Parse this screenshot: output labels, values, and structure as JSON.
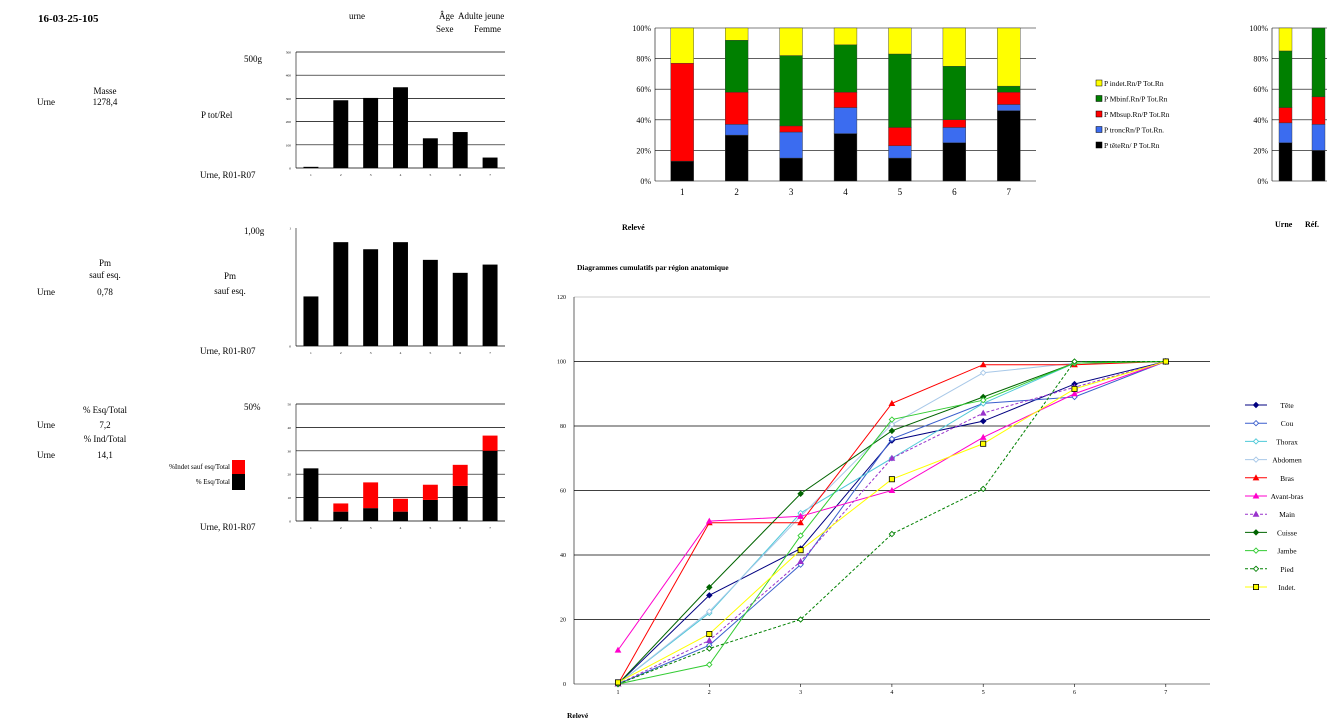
{
  "header": {
    "id": "16-03-25-105",
    "urne": "urne",
    "age_label": "Âge",
    "age_value": "Adulte jeune",
    "sexe_label": "Sexe",
    "sexe_value": "Femme"
  },
  "left_panel": {
    "masse": {
      "group": "Urne",
      "title": "Masse",
      "value": "1278,4"
    },
    "pm": {
      "group": "Urne",
      "title1": "Pm",
      "title2": "sauf esq.",
      "value": "0,78"
    },
    "esq": {
      "group1": "Urne",
      "title1": "% Esq/Total",
      "value1": "7,2",
      "title2": "% Ind/Total",
      "group2": "Urne",
      "value2": "14,1"
    }
  },
  "chart_data": [
    {
      "id": "ptot",
      "type": "bar",
      "scale_label": "500g",
      "side_label": "P tot/Rel",
      "bottom_label": "Urne, R01-R07",
      "categories": [
        "1",
        "2",
        "3",
        "4",
        "5",
        "6",
        "7"
      ],
      "values": [
        5,
        292,
        302,
        348,
        128,
        155,
        45
      ],
      "ylim": [
        0,
        500
      ],
      "yticks": [
        "0",
        "100",
        "200",
        "300",
        "400",
        "500"
      ],
      "grid": true
    },
    {
      "id": "pm",
      "type": "bar",
      "scale_label": "1,00g",
      "side_label": "Pm",
      "side_label2": "sauf esq.",
      "bottom_label": "Urne, R01-R07",
      "categories": [
        "1",
        "2",
        "3",
        "4",
        "5",
        "6",
        "7"
      ],
      "values": [
        0.42,
        0.88,
        0.82,
        0.88,
        0.73,
        0.62,
        0.69
      ],
      "ylim": [
        0,
        1
      ],
      "yticks": [
        "0",
        "1"
      ],
      "grid": false
    },
    {
      "id": "esq",
      "type": "bar",
      "scale_label": "50%",
      "bottom_label": "Urne, R01-R07",
      "legend": [
        "%Indet sauf esq/Total",
        "% Esq/Total"
      ],
      "categories": [
        "1",
        "2",
        "3",
        "4",
        "5",
        "6",
        "7"
      ],
      "series": [
        {
          "name": "% Esq/Total",
          "color": "#000000",
          "values": [
            22.5,
            4,
            5.5,
            4,
            9,
            15,
            30
          ]
        },
        {
          "name": "%Indet sauf esq/Total",
          "color": "#ff0000",
          "values": [
            0,
            3.5,
            11,
            5.5,
            6.5,
            9,
            6.5
          ]
        }
      ],
      "ylim": [
        0,
        50
      ],
      "yticks": [
        "0",
        "10",
        "20",
        "30",
        "40",
        "50"
      ],
      "grid": true
    },
    {
      "id": "stacked",
      "type": "bar",
      "stacked_percent": true,
      "xlabel": "Relevé",
      "categories": [
        "1",
        "2",
        "3",
        "4",
        "5",
        "6",
        "7"
      ],
      "yticks": [
        "0%",
        "20%",
        "40%",
        "60%",
        "80%",
        "100%"
      ],
      "series": [
        {
          "name": "P têteRn/ P Tot.Rn",
          "color": "#000000",
          "values": [
            13,
            30,
            15,
            31,
            15,
            25,
            46
          ]
        },
        {
          "name": "P troncRn/P Tot.Rn.",
          "color": "#3b6cf0",
          "values": [
            0,
            7,
            17,
            17,
            8,
            10,
            4
          ]
        },
        {
          "name": "P Mbsup.Rn/P Tot.Rn",
          "color": "#ff0000",
          "values": [
            64,
            21,
            4,
            10,
            12,
            5,
            8
          ]
        },
        {
          "name": "P Mbinf.Rn/P Tot.Rn",
          "color": "#008000",
          "values": [
            0,
            34,
            46,
            31,
            48,
            35,
            4
          ]
        },
        {
          "name": "P indet.Rn/P Tot.Rn",
          "color": "#ffff00",
          "values": [
            23,
            8,
            18,
            11,
            17,
            25,
            38
          ]
        }
      ]
    },
    {
      "id": "ref",
      "type": "bar",
      "stacked_percent": true,
      "categories": [
        "Urne",
        "Réf."
      ],
      "yticks": [
        "0%",
        "20%",
        "40%",
        "60%",
        "80%",
        "100%"
      ],
      "series": [
        {
          "name": "P têteRn/ P Tot.Rn",
          "color": "#000000",
          "values": [
            25,
            20
          ]
        },
        {
          "name": "P troncRn/P Tot.Rn.",
          "color": "#3b6cf0",
          "values": [
            13,
            17
          ]
        },
        {
          "name": "P Mbsup.Rn/P Tot.Rn",
          "color": "#ff0000",
          "values": [
            10,
            18
          ]
        },
        {
          "name": "P Mbinf.Rn/P Tot.Rn",
          "color": "#008000",
          "values": [
            37,
            45
          ]
        },
        {
          "name": "P indet.Rn/P Tot.Rn",
          "color": "#ffff00",
          "values": [
            15,
            0
          ]
        }
      ]
    },
    {
      "id": "cumul",
      "type": "line",
      "title": "Diagrammes cumulatifs par région anatomique",
      "xlabel": "Relevé",
      "x": [
        1,
        2,
        3,
        4,
        5,
        6,
        7
      ],
      "ylim": [
        0,
        120
      ],
      "yticks": [
        0,
        20,
        40,
        60,
        80,
        100,
        120
      ],
      "grid": true,
      "series": [
        {
          "name": "Tête",
          "color": "#000080",
          "marker": "diamond",
          "fill": "#000080",
          "dash": false,
          "values": [
            0,
            27.5,
            42,
            75.5,
            81.5,
            93,
            100
          ]
        },
        {
          "name": "Cou",
          "color": "#3a5fcd",
          "marker": "diamond",
          "fill": "#ffffff",
          "dash": false,
          "values": [
            0,
            12,
            37,
            76,
            87,
            89,
            100
          ]
        },
        {
          "name": "Thorax",
          "color": "#4ec9d8",
          "marker": "diamond",
          "fill": "#ffffff",
          "dash": false,
          "values": [
            0,
            22,
            53,
            70,
            87,
            99.5,
            100
          ]
        },
        {
          "name": "Abdomen",
          "color": "#a8c8e8",
          "marker": "diamond",
          "fill": "#ffffff",
          "dash": false,
          "values": [
            0,
            22.5,
            52,
            80.5,
            96.5,
            99.5,
            100
          ]
        },
        {
          "name": "Bras",
          "color": "#ff0000",
          "marker": "triangle",
          "fill": "#ffffff",
          "dash": false,
          "values": [
            0,
            50,
            50,
            87,
            99,
            99,
            100
          ]
        },
        {
          "name": "Avant-bras",
          "color": "#ff00cc",
          "marker": "triangle",
          "fill": "#ffffff",
          "dash": false,
          "values": [
            10.5,
            50.5,
            52,
            60,
            76.5,
            90,
            100
          ]
        },
        {
          "name": "Main",
          "color": "#9933cc",
          "marker": "triangle",
          "fill": "#ffffff",
          "dash": true,
          "values": [
            0,
            13.5,
            38,
            70,
            84,
            92,
            100
          ]
        },
        {
          "name": "Cuisse",
          "color": "#006400",
          "marker": "diamond",
          "fill": "#006400",
          "dash": false,
          "values": [
            0,
            30,
            59,
            78.5,
            89,
            99.5,
            100
          ]
        },
        {
          "name": "Jambe",
          "color": "#33cc33",
          "marker": "diamond",
          "fill": "#ffffff",
          "dash": false,
          "values": [
            0,
            6,
            46,
            82,
            88,
            99.5,
            100
          ]
        },
        {
          "name": "Pied",
          "color": "#008000",
          "marker": "diamond",
          "fill": "#ffffff",
          "dash": true,
          "values": [
            0,
            11,
            20,
            46.5,
            60.5,
            100,
            100
          ]
        },
        {
          "name": "Indet.",
          "color": "#ffff00",
          "marker": "square",
          "fill": "#ffff00",
          "dash": false,
          "values": [
            0.5,
            15.5,
            41.5,
            63.5,
            74.5,
            91.5,
            100
          ]
        }
      ]
    }
  ]
}
